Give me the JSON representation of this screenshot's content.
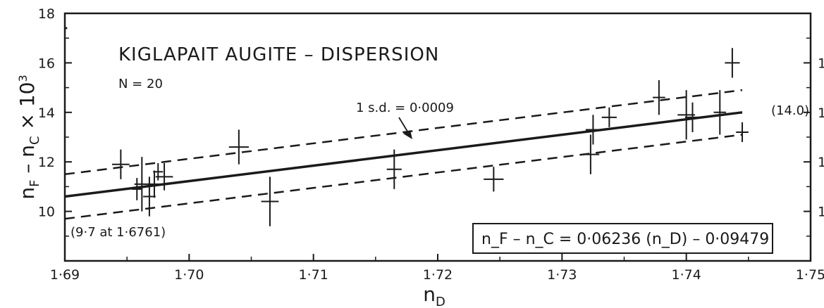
{
  "chart_data": {
    "type": "scatter",
    "title": "KIGLAPAIT AUGITE – DISPERSION",
    "subtitle": "N = 20",
    "xlabel": "n_D",
    "ylabel": "n_F – n_C × 10^3",
    "xlim": [
      1.69,
      1.75
    ],
    "ylim": [
      8,
      18
    ],
    "x_ticks": [
      "1·69",
      "1·70",
      "1·71",
      "1·72",
      "1·73",
      "1·74",
      "1·75"
    ],
    "y_ticks": [
      "10",
      "12",
      "14",
      "16",
      "18"
    ],
    "grid": false,
    "regression": {
      "equation": "n_F – n_C = 0·06236 (n_D) – 0·09479",
      "x_start": 1.69,
      "y_start": 10.6,
      "x_end": 1.7445,
      "y_end": 14.0,
      "end_label": "(14.0)",
      "low_point_label": "(9·7 at 1·6761)"
    },
    "confidence_band": {
      "label": "1 s.d. = 0·0009",
      "offset": 0.9
    },
    "points": [
      {
        "x": 1.6945,
        "y": 11.9,
        "x_err": 0.0007,
        "y_err": 0.6
      },
      {
        "x": 1.6958,
        "y": 10.9,
        "x_err": 0.0004,
        "y_err": 0.45
      },
      {
        "x": 1.6962,
        "y": 11.1,
        "x_err": 0.0006,
        "y_err": 1.1
      },
      {
        "x": 1.6968,
        "y": 10.6,
        "x_err": 0.0005,
        "y_err": 0.8
      },
      {
        "x": 1.6972,
        "y": 11.1,
        "x_err": 0.0005,
        "y_err": 0.55
      },
      {
        "x": 1.6975,
        "y": 11.6,
        "x_err": 0.0004,
        "y_err": 0.35
      },
      {
        "x": 1.698,
        "y": 11.4,
        "x_err": 0.0007,
        "y_err": 0.55
      },
      {
        "x": 1.704,
        "y": 12.6,
        "x_err": 0.0008,
        "y_err": 0.7
      },
      {
        "x": 1.7065,
        "y": 10.4,
        "x_err": 0.0007,
        "y_err": 1.0
      },
      {
        "x": 1.7165,
        "y": 11.7,
        "x_err": 0.0006,
        "y_err": 0.8
      },
      {
        "x": 1.7245,
        "y": 11.3,
        "x_err": 0.0008,
        "y_err": 0.5
      },
      {
        "x": 1.7323,
        "y": 12.3,
        "x_err": 0.0007,
        "y_err": 0.8
      },
      {
        "x": 1.7325,
        "y": 13.3,
        "x_err": 0.0006,
        "y_err": 0.6
      },
      {
        "x": 1.7338,
        "y": 13.8,
        "x_err": 0.0006,
        "y_err": 0.4
      },
      {
        "x": 1.7378,
        "y": 14.6,
        "x_err": 0.0005,
        "y_err": 0.7
      },
      {
        "x": 1.74,
        "y": 13.9,
        "x_err": 0.0007,
        "y_err": 1.0
      },
      {
        "x": 1.7405,
        "y": 13.8,
        "x_err": 0.0006,
        "y_err": 0.6
      },
      {
        "x": 1.7427,
        "y": 14.0,
        "x_err": 0.0005,
        "y_err": 0.9
      },
      {
        "x": 1.7437,
        "y": 16.0,
        "x_err": 0.0006,
        "y_err": 0.6
      },
      {
        "x": 1.7445,
        "y": 13.2,
        "x_err": 0.0005,
        "y_err": 0.4
      }
    ]
  }
}
